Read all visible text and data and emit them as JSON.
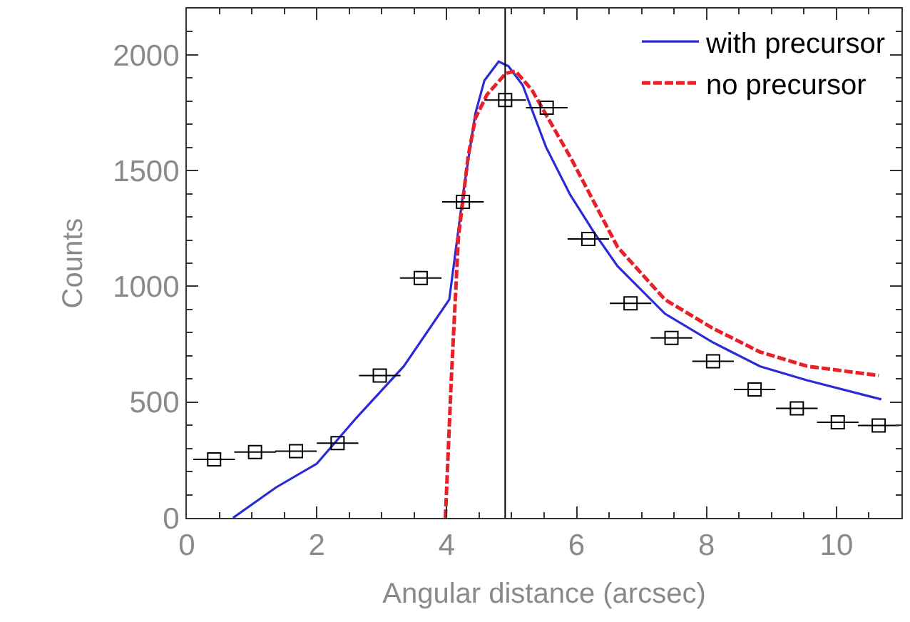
{
  "chart_data": {
    "type": "line",
    "xlabel": "Angular distance (arcsec)",
    "ylabel": "Counts",
    "xlim": [
      0,
      11
    ],
    "xticks": [
      0,
      2,
      4,
      6,
      8,
      10
    ],
    "ylim": [
      0,
      2200
    ],
    "yticks": [
      0,
      500,
      1000,
      1500,
      2000
    ],
    "legend": "top right",
    "ref_lines": [
      {
        "axis": "x",
        "value": 4.9,
        "color": "#000000"
      }
    ],
    "series": [
      {
        "name": "with precursor",
        "color": "#2a2ad8",
        "line_style": "solid",
        "marker": "none",
        "x": [
          0.71,
          1.37,
          2.0,
          2.61,
          3.34,
          4.04,
          4.25,
          4.44,
          4.58,
          4.8,
          4.95,
          5.17,
          5.53,
          5.9,
          6.27,
          6.63,
          7.36,
          8.09,
          8.82,
          9.55,
          10.69
        ],
        "values": [
          0,
          131,
          234,
          432,
          655,
          943,
          1396,
          1745,
          1889,
          1971,
          1951,
          1869,
          1601,
          1396,
          1232,
          1087,
          882,
          759,
          655,
          594,
          512
        ]
      },
      {
        "name": "no precursor",
        "color": "#e8202a",
        "line_style": "dashed",
        "marker": "none",
        "x": [
          3.98,
          4.07,
          4.18,
          4.33,
          4.44,
          4.62,
          4.91,
          5.06,
          5.31,
          5.9,
          6.63,
          7.36,
          8.09,
          8.82,
          9.55,
          10.65
        ],
        "values": [
          0,
          594,
          1211,
          1560,
          1725,
          1828,
          1920,
          1930,
          1849,
          1560,
          1170,
          943,
          820,
          717,
          655,
          615
        ]
      },
      {
        "type": "scatter",
        "color": "#000000",
        "marker": "square",
        "x": [
          0.42,
          1.05,
          1.68,
          2.32,
          2.97,
          3.6,
          4.25,
          4.9,
          5.54,
          6.18,
          6.83,
          7.46,
          8.1,
          8.74,
          9.39,
          10.02,
          10.65
        ],
        "values": [
          253,
          284,
          288,
          323,
          615,
          1036,
          1365,
          1805,
          1772,
          1205,
          927,
          777,
          676,
          555,
          473,
          413,
          399
        ],
        "xerrors": [
          0.32,
          0.32,
          0.32,
          0.32,
          0.32,
          0.32,
          0.32,
          0.32,
          0.32,
          0.32,
          0.32,
          0.32,
          0.32,
          0.32,
          0.32,
          0.32,
          0.32
        ]
      }
    ]
  }
}
